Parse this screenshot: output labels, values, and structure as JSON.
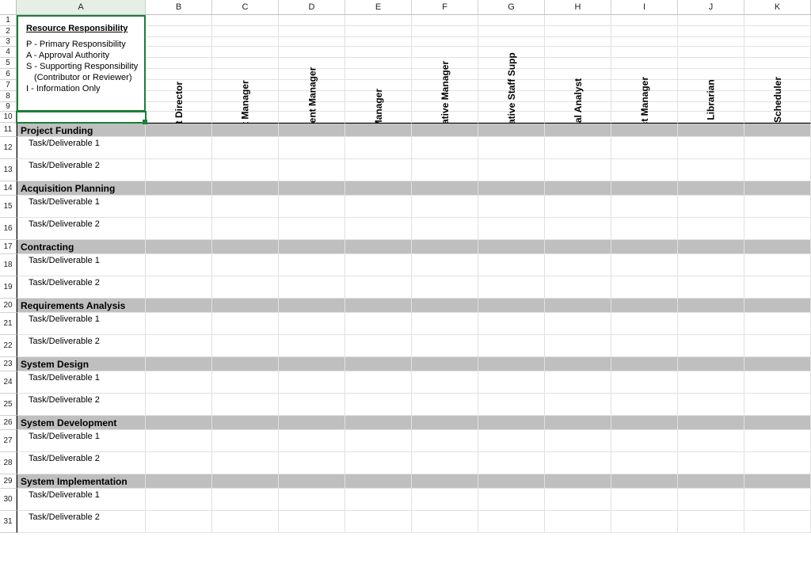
{
  "columns": [
    "A",
    "B",
    "C",
    "D",
    "E",
    "F",
    "G",
    "H",
    "I",
    "J",
    "K"
  ],
  "legend": {
    "title": "Resource Responsibility",
    "lines": [
      "P - Primary Responsibility",
      "A - Approval Authority",
      "S - Supporting Responsibility",
      "(Contributor or Reviewer)",
      "I - Information Only"
    ]
  },
  "roles": [
    "Project Director",
    "Project Manager",
    "Procurement Manager",
    "Risk Manager",
    "Administrative Manager",
    "Administrative Staff Supp",
    "Financial Analyst",
    "Contract Manager",
    "Project Librarian",
    "Project Scheduler"
  ],
  "sections": [
    {
      "title": "Project Funding",
      "tasks": [
        "Task/Deliverable 1",
        "Task/Deliverable 2"
      ]
    },
    {
      "title": "Acquisition Planning",
      "tasks": [
        "Task/Deliverable 1",
        "Task/Deliverable 2"
      ]
    },
    {
      "title": "Contracting",
      "tasks": [
        "Task/Deliverable 1",
        "Task/Deliverable 2"
      ]
    },
    {
      "title": "Requirements Analysis",
      "tasks": [
        "Task/Deliverable 1",
        "Task/Deliverable 2"
      ]
    },
    {
      "title": "System Design",
      "tasks": [
        "Task/Deliverable 1",
        "Task/Deliverable 2"
      ]
    },
    {
      "title": "System Development",
      "tasks": [
        "Task/Deliverable 1",
        "Task/Deliverable 2"
      ]
    },
    {
      "title": "System Implementation",
      "tasks": [
        "Task/Deliverable 1",
        "Task/Deliverable 2"
      ]
    }
  ],
  "layout": {
    "row_header_w": 22,
    "colA_w": 163,
    "colD_w": 84,
    "legend_rows_h": [
      14,
      14,
      12,
      14,
      14,
      14,
      14,
      14,
      12,
      14
    ],
    "section_row_h": 18,
    "task_row_h": 28
  },
  "colors": {
    "section_bg": "#bfbfbf",
    "selection_green": "#1a7f37"
  }
}
